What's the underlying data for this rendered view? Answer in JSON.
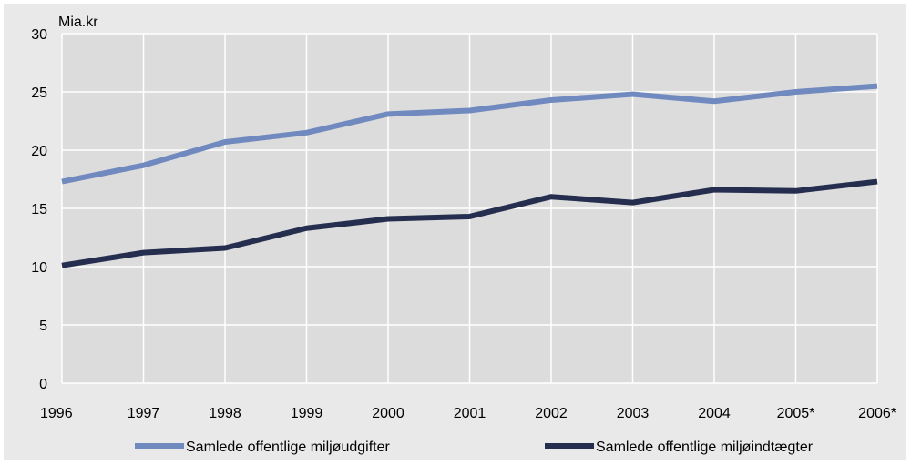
{
  "chart_data": {
    "type": "line",
    "title": "",
    "xlabel": "",
    "ylabel": "Mia.kr",
    "ylim": [
      0,
      30
    ],
    "yticks": [
      0,
      5,
      10,
      15,
      20,
      25,
      30
    ],
    "categories": [
      "1996",
      "1997",
      "1998",
      "1999",
      "2000",
      "2001",
      "2002",
      "2003",
      "2004",
      "2005*",
      "2006*"
    ],
    "grid": "horizontal and vertical, white",
    "legend_position": "bottom",
    "plot_background": "#dcdcdc",
    "series": [
      {
        "name": "Samlede offentlige miljøudgifter",
        "color": "#7089bf",
        "values": [
          17.3,
          18.7,
          20.7,
          21.5,
          23.1,
          23.4,
          24.3,
          24.8,
          24.2,
          25.0,
          25.5
        ]
      },
      {
        "name": "Samlede offentlige miljøindtægter",
        "color": "#252e4e",
        "values": [
          10.1,
          11.2,
          11.6,
          13.3,
          14.1,
          14.3,
          16.0,
          15.5,
          16.6,
          16.5,
          17.3
        ]
      }
    ]
  }
}
